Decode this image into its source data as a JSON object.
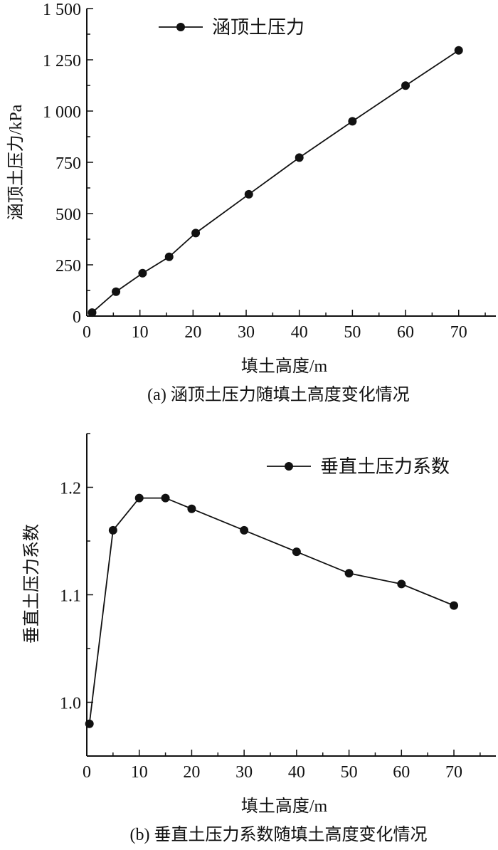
{
  "chart_data": [
    {
      "type": "line",
      "caption": "(a) 涵顶土压力随填土高度变化情况",
      "xlabel": "填土高度/m",
      "ylabel": "涵顶土压力/kPa",
      "xlim": [
        0,
        77
      ],
      "ylim": [
        0,
        1500
      ],
      "x_ticks": [
        0,
        10,
        20,
        30,
        40,
        50,
        60,
        70
      ],
      "x_tick_labels": [
        "0",
        "10",
        "20",
        "30",
        "40",
        "50",
        "60",
        "70"
      ],
      "y_ticks": [
        0,
        250,
        500,
        750,
        1000,
        1250,
        1500
      ],
      "y_tick_labels": [
        "0",
        "250",
        "500",
        "750",
        "1 000",
        "1 250",
        "1 500"
      ],
      "grid": false,
      "legend_position": "top-left",
      "series": [
        {
          "name": "涵顶土压力",
          "color": "#111111",
          "marker": "circle",
          "x": [
            1,
            5.5,
            10.5,
            15.5,
            20.5,
            30.5,
            40,
            50,
            60,
            70
          ],
          "y": [
            17,
            119,
            209,
            289,
            405,
            594,
            773,
            950,
            1124,
            1296
          ]
        }
      ]
    },
    {
      "type": "line",
      "caption": "(b) 垂直土压力系数随填土高度变化情况",
      "xlabel": "填土高度/m",
      "ylabel": "垂直土压力系数",
      "xlim": [
        0,
        78
      ],
      "ylim": [
        0.95,
        1.25
      ],
      "x_ticks": [
        0,
        10,
        20,
        30,
        40,
        50,
        60,
        70
      ],
      "x_tick_labels": [
        "0",
        "10",
        "20",
        "30",
        "40",
        "50",
        "60",
        "70"
      ],
      "y_ticks": [
        1.0,
        1.1,
        1.2
      ],
      "y_tick_labels": [
        "1.0",
        "1.1",
        "1.2"
      ],
      "grid": false,
      "legend_position": "top-right",
      "series": [
        {
          "name": "垂直土压力系数",
          "color": "#111111",
          "marker": "circle",
          "x": [
            0.5,
            5,
            10,
            15,
            20,
            30,
            40,
            50,
            60,
            70
          ],
          "y": [
            0.98,
            1.16,
            1.19,
            1.19,
            1.18,
            1.16,
            1.14,
            1.12,
            1.11,
            1.09
          ]
        }
      ]
    }
  ]
}
